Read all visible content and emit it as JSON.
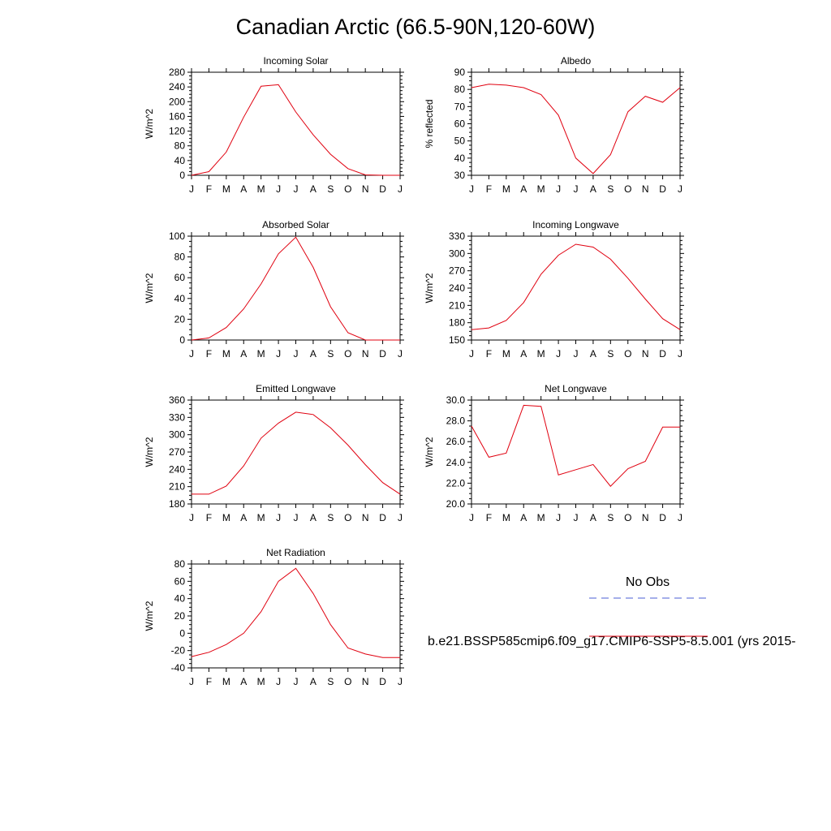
{
  "title": "Canadian Arctic (66.5-90N,120-60W)",
  "months": [
    "J",
    "F",
    "M",
    "A",
    "M",
    "J",
    "J",
    "A",
    "S",
    "O",
    "N",
    "D",
    "J"
  ],
  "legend": {
    "obs_label": "No Obs",
    "model_label": "b.e21.BSSP585cmip6.f09_g17.CMIP6-SSP5-8.5.001 (yrs 2015-",
    "obs_color": "#4b5fd6",
    "model_color": "#e0000f"
  },
  "chart_data": [
    {
      "type": "line",
      "title": "Incoming Solar",
      "ylabel": "W/m^2",
      "ylim": [
        0,
        280
      ],
      "yticks": [
        "0",
        "40",
        "80",
        "120",
        "160",
        "200",
        "240",
        "280"
      ],
      "series": [
        {
          "values": [
            0,
            10,
            63,
            158,
            242,
            246,
            172,
            110,
            57,
            18,
            1,
            0,
            0
          ]
        }
      ]
    },
    {
      "type": "line",
      "title": "Albedo",
      "ylabel": "% reflected",
      "ylim": [
        30,
        90
      ],
      "yticks": [
        "30",
        "40",
        "50",
        "60",
        "70",
        "80",
        "90"
      ],
      "series": [
        {
          "values": [
            81,
            83,
            82.5,
            81,
            77,
            65,
            40,
            31,
            42,
            67,
            76,
            72.5,
            81
          ]
        }
      ]
    },
    {
      "type": "line",
      "title": "Absorbed Solar",
      "ylabel": "W/m^2",
      "ylim": [
        0,
        100
      ],
      "yticks": [
        "0",
        "20",
        "40",
        "60",
        "80",
        "100"
      ],
      "series": [
        {
          "values": [
            0,
            2,
            12,
            30,
            54,
            83,
            99,
            70,
            32,
            7,
            0,
            0,
            0
          ]
        }
      ]
    },
    {
      "type": "line",
      "title": "Incoming Longwave",
      "ylabel": "W/m^2",
      "ylim": [
        150,
        330
      ],
      "yticks": [
        "150",
        "180",
        "210",
        "240",
        "270",
        "300",
        "330"
      ],
      "series": [
        {
          "values": [
            168,
            171,
            184,
            215,
            264,
            297,
            316,
            311,
            290,
            257,
            221,
            187,
            168
          ]
        }
      ]
    },
    {
      "type": "line",
      "title": "Emitted Longwave",
      "ylabel": "W/m^2",
      "ylim": [
        180,
        360
      ],
      "yticks": [
        "180",
        "210",
        "240",
        "270",
        "300",
        "330",
        "360"
      ],
      "series": [
        {
          "values": [
            197,
            197,
            211,
            246,
            294,
            320,
            339,
            335,
            312,
            282,
            248,
            217,
            197
          ]
        }
      ]
    },
    {
      "type": "line",
      "title": "Net Longwave",
      "ylabel": "W/m^2",
      "ylim": [
        20,
        30
      ],
      "yticks": [
        "20.0",
        "22.0",
        "24.0",
        "26.0",
        "28.0",
        "30.0"
      ],
      "series": [
        {
          "values": [
            27.5,
            24.5,
            24.9,
            29.5,
            29.4,
            22.8,
            23.3,
            23.8,
            21.7,
            23.4,
            24.1,
            27.4,
            27.4
          ]
        }
      ]
    },
    {
      "type": "line",
      "title": "Net Radiation",
      "ylabel": "W/m^2",
      "ylim": [
        -40,
        80
      ],
      "yticks": [
        "-40",
        "-20",
        "0",
        "20",
        "40",
        "60",
        "80"
      ],
      "series": [
        {
          "values": [
            -27,
            -22,
            -13,
            0,
            25,
            60,
            75,
            46,
            10,
            -17,
            -24,
            -28,
            -28
          ]
        }
      ]
    }
  ]
}
